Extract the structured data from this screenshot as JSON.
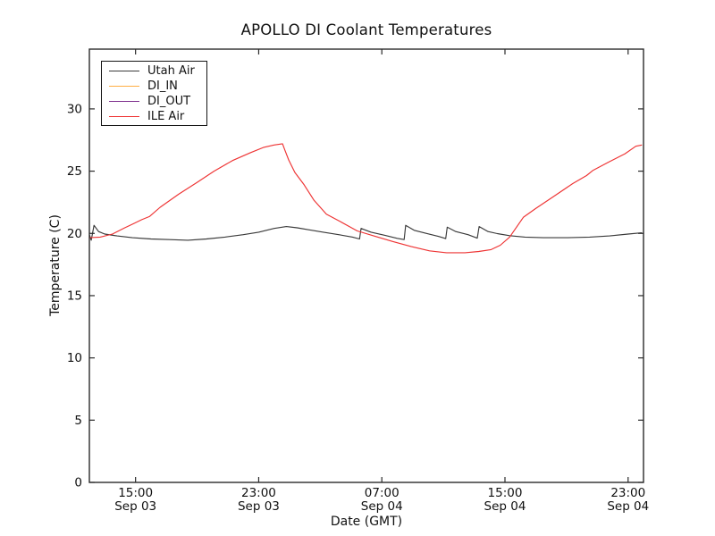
{
  "figure": {
    "background": "#ffffff",
    "frame_color": "#2a2a2a"
  },
  "chart_data": {
    "type": "line",
    "title": "APOLLO DI Coolant Temperatures",
    "xlabel": "Date (GMT)",
    "ylabel": "Temperature (C)",
    "grid": false,
    "legend_position": "upper left",
    "x_axis_note": "hours measured from Sep 03 12:00 GMT",
    "xlim_hours": [
      0,
      36
    ],
    "ylim": [
      0,
      34.8
    ],
    "yticks": [
      0,
      5,
      10,
      15,
      20,
      25,
      30
    ],
    "xticks": [
      {
        "hour": 3,
        "time": "15:00",
        "date": "Sep 03"
      },
      {
        "hour": 11,
        "time": "23:00",
        "date": "Sep 03"
      },
      {
        "hour": 19,
        "time": "07:00",
        "date": "Sep 04"
      },
      {
        "hour": 27,
        "time": "15:00",
        "date": "Sep 04"
      },
      {
        "hour": 35,
        "time": "23:00",
        "date": "Sep 04"
      }
    ],
    "series": [
      {
        "name": "Utah Air",
        "color": "#3a3a3a",
        "points": [
          [
            0,
            19.9
          ],
          [
            0.12,
            19.45
          ],
          [
            0.3,
            20.65
          ],
          [
            0.6,
            20.15
          ],
          [
            1.0,
            19.95
          ],
          [
            1.8,
            19.8
          ],
          [
            2.8,
            19.65
          ],
          [
            4.0,
            19.55
          ],
          [
            5.2,
            19.5
          ],
          [
            6.4,
            19.45
          ],
          [
            7.6,
            19.55
          ],
          [
            8.8,
            19.7
          ],
          [
            10.0,
            19.9
          ],
          [
            11.0,
            20.1
          ],
          [
            12.0,
            20.4
          ],
          [
            12.8,
            20.55
          ],
          [
            13.5,
            20.45
          ],
          [
            14.2,
            20.3
          ],
          [
            15.2,
            20.1
          ],
          [
            16.2,
            19.9
          ],
          [
            17.1,
            19.7
          ],
          [
            17.55,
            19.55
          ],
          [
            17.65,
            20.4
          ],
          [
            18.3,
            20.1
          ],
          [
            19.2,
            19.85
          ],
          [
            20.0,
            19.6
          ],
          [
            20.45,
            19.5
          ],
          [
            20.55,
            20.65
          ],
          [
            21.1,
            20.25
          ],
          [
            21.9,
            20.0
          ],
          [
            22.7,
            19.75
          ],
          [
            23.15,
            19.58
          ],
          [
            23.25,
            20.5
          ],
          [
            23.8,
            20.15
          ],
          [
            24.6,
            19.9
          ],
          [
            25.2,
            19.62
          ],
          [
            25.32,
            20.55
          ],
          [
            25.9,
            20.15
          ],
          [
            26.5,
            19.98
          ],
          [
            27.3,
            19.82
          ],
          [
            28.3,
            19.7
          ],
          [
            29.5,
            19.65
          ],
          [
            31.0,
            19.65
          ],
          [
            32.5,
            19.7
          ],
          [
            33.8,
            19.8
          ],
          [
            35.0,
            19.95
          ],
          [
            35.9,
            20.05
          ]
        ]
      },
      {
        "name": "DI_IN",
        "color": "#ffad42",
        "points": []
      },
      {
        "name": "DI_OUT",
        "color": "#7d2e8e",
        "points": []
      },
      {
        "name": "ILE Air",
        "color": "#ee3333",
        "points": [
          [
            0,
            19.65
          ],
          [
            0.7,
            19.7
          ],
          [
            1.5,
            19.95
          ],
          [
            2.3,
            20.45
          ],
          [
            2.9,
            20.8
          ],
          [
            3.4,
            21.1
          ],
          [
            3.9,
            21.35
          ],
          [
            4.6,
            22.1
          ],
          [
            5.8,
            23.15
          ],
          [
            7.0,
            24.1
          ],
          [
            8.1,
            25.0
          ],
          [
            9.3,
            25.85
          ],
          [
            10.5,
            26.5
          ],
          [
            11.3,
            26.9
          ],
          [
            12.0,
            27.1
          ],
          [
            12.55,
            27.2
          ],
          [
            12.7,
            26.7
          ],
          [
            12.95,
            25.9
          ],
          [
            13.35,
            24.9
          ],
          [
            13.95,
            23.9
          ],
          [
            14.6,
            22.65
          ],
          [
            15.4,
            21.55
          ],
          [
            16.3,
            20.95
          ],
          [
            17.4,
            20.2
          ],
          [
            18.6,
            19.75
          ],
          [
            19.7,
            19.35
          ],
          [
            20.9,
            18.95
          ],
          [
            22.1,
            18.6
          ],
          [
            23.2,
            18.45
          ],
          [
            24.4,
            18.45
          ],
          [
            25.3,
            18.55
          ],
          [
            26.1,
            18.7
          ],
          [
            26.7,
            19.05
          ],
          [
            27.3,
            19.7
          ],
          [
            28.2,
            21.3
          ],
          [
            29.0,
            22.0
          ],
          [
            30.2,
            23.0
          ],
          [
            31.4,
            24.0
          ],
          [
            32.3,
            24.65
          ],
          [
            32.7,
            25.05
          ],
          [
            33.7,
            25.7
          ],
          [
            34.8,
            26.4
          ],
          [
            35.5,
            27.0
          ],
          [
            35.9,
            27.1
          ]
        ]
      }
    ]
  }
}
